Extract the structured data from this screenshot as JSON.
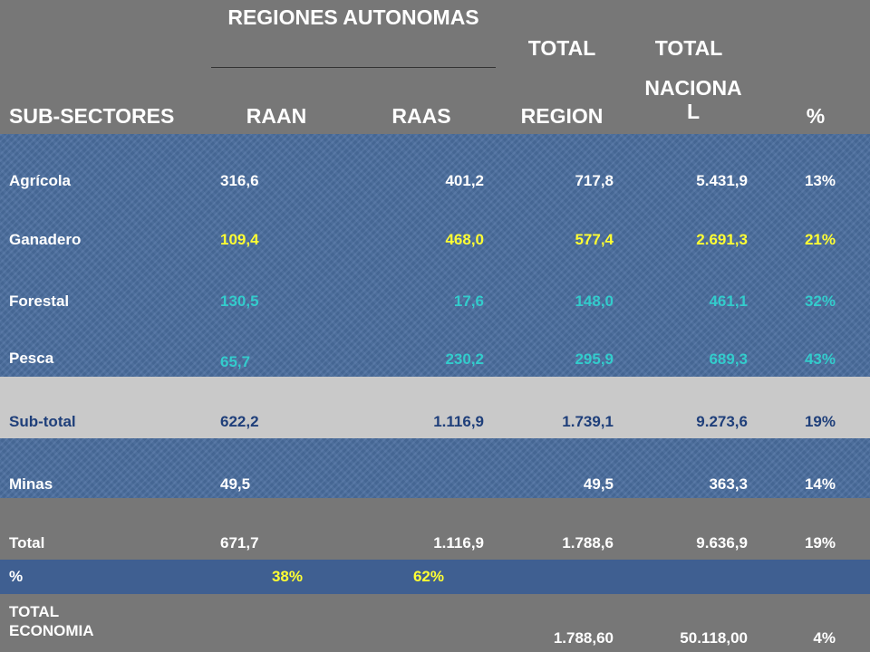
{
  "header": {
    "regiones_autonomas": "REGIONES AUTONOMAS",
    "total_1": "TOTAL",
    "total_2": "TOTAL",
    "sub_sectores": "SUB-SECTORES",
    "raan": "RAAN",
    "raas": "RAAS",
    "region": "REGION",
    "nacional": "NACIONA L",
    "pct": "%"
  },
  "rows": [
    {
      "label": "Agrícola",
      "raan": "316,6",
      "raas": "401,2",
      "region": "717,8",
      "nacional": "5.431,9",
      "pct": "13%"
    },
    {
      "label": "Ganadero",
      "raan": "109,4",
      "raas": "468,0",
      "region": "577,4",
      "nacional": "2.691,3",
      "pct": "21%"
    },
    {
      "label": "Forestal",
      "raan": "130,5",
      "raas": "17,6",
      "region": "148,0",
      "nacional": "461,1",
      "pct": "32%"
    },
    {
      "label": "Pesca",
      "raan": "65,7",
      "raas": "230,2",
      "region": "295,9",
      "nacional": "689,3",
      "pct": "43%"
    },
    {
      "label": "Sub-total",
      "raan": "622,2",
      "raas": "1.116,9",
      "region": "1.739,1",
      "nacional": "9.273,6",
      "pct": "19%"
    },
    {
      "label": "Minas",
      "raan": "49,5",
      "raas": "",
      "region": "49,5",
      "nacional": "363,3",
      "pct": "14%"
    },
    {
      "label": "Total",
      "raan": "671,7",
      "raas": "1.116,9",
      "region": "1.788,6",
      "nacional": "9.636,9",
      "pct": "19%"
    },
    {
      "label": "%",
      "raan": "38%",
      "raas": "62%",
      "region": "",
      "nacional": "",
      "pct": ""
    },
    {
      "label": "TOTAL ECONOMIA",
      "raan": "",
      "raas": "",
      "region": "1.788,60",
      "nacional": "50.118,00",
      "pct": "4%"
    }
  ],
  "colors": {
    "header_bg": "#777777",
    "blue_band": "#4a6d9e",
    "subtotal_band": "#c9c9c9",
    "percent_band": "#3f5f91",
    "yellow_text": "#ffff33",
    "cyan_text": "#33cccc",
    "navy_text": "#1f3f7a"
  }
}
